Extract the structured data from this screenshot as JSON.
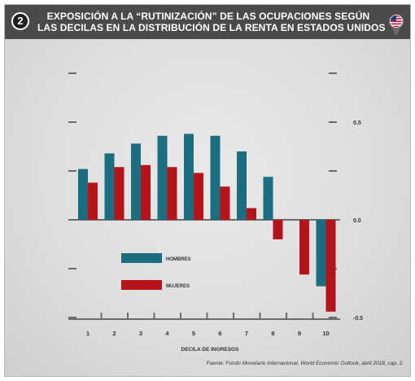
{
  "header": {
    "badge": "2",
    "title_line1": "EXPOSICIÓN A LA “RUTINIZACIÓN” DE LAS OCUPACIONES SEGÚN",
    "title_line2": "LAS DECILAS EN LA DISTRIBUCIÓN DE LA RENTA EN ESTADOS UNIDOS",
    "icon": "us-flag-pin-icon"
  },
  "colors": {
    "hombres": "#1a6e80",
    "mujeres": "#b5141a",
    "axis": "#6b6b6b",
    "header": "#4a4a4a"
  },
  "chart_data": {
    "type": "bar",
    "categories": [
      "1",
      "2",
      "3",
      "4",
      "5",
      "6",
      "7",
      "8",
      "9",
      "10"
    ],
    "series": [
      {
        "name": "HOMBRES",
        "values": [
          0.26,
          0.34,
          0.39,
          0.43,
          0.44,
          0.43,
          0.35,
          0.22,
          0.0,
          -0.34
        ]
      },
      {
        "name": "MUJERES",
        "values": [
          0.19,
          0.27,
          0.28,
          0.27,
          0.24,
          0.17,
          0.06,
          -0.1,
          -0.28,
          -0.47
        ]
      }
    ],
    "xlabel": "DECILA DE INGRESOS",
    "ylabel": "",
    "ylim": [
      -0.5,
      0.75
    ],
    "yticks": [
      0.5,
      0.0,
      -0.5
    ],
    "ytick_labels": [
      "0.5",
      "0.0",
      "-0.5"
    ],
    "legend_placement": "center-left"
  },
  "source": "Fuente: Fondo Monetario Internacional, World Economic Outlook, abril 2018, cap. 2."
}
